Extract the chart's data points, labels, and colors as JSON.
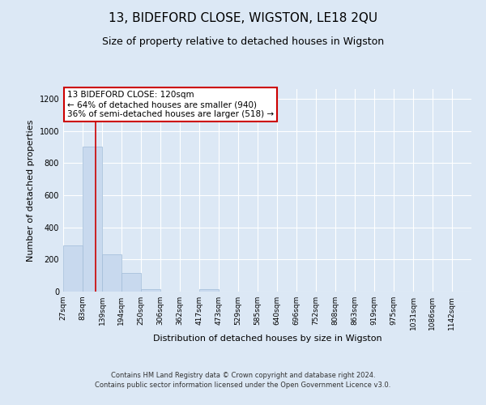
{
  "title": "13, BIDEFORD CLOSE, WIGSTON, LE18 2QU",
  "subtitle": "Size of property relative to detached houses in Wigston",
  "xlabel": "Distribution of detached houses by size in Wigston",
  "ylabel": "Number of detached properties",
  "bin_edges": [
    27,
    83,
    139,
    194,
    250,
    306,
    362,
    417,
    473,
    529,
    585,
    640,
    696,
    752,
    808,
    863,
    919,
    975,
    1031,
    1086,
    1142,
    1198
  ],
  "bar_heights": [
    285,
    900,
    230,
    115,
    15,
    0,
    0,
    15,
    0,
    0,
    0,
    0,
    0,
    0,
    0,
    0,
    0,
    0,
    0,
    0,
    0
  ],
  "bar_color": "#c8d9ee",
  "bar_edgecolor": "#a0bcd8",
  "property_size": 120,
  "annotation_text": "13 BIDEFORD CLOSE: 120sqm\n← 64% of detached houses are smaller (940)\n36% of semi-detached houses are larger (518) →",
  "annotation_box_color": "#ffffff",
  "annotation_border_color": "#cc0000",
  "red_line_color": "#cc0000",
  "ylim": [
    0,
    1260
  ],
  "yticks": [
    0,
    200,
    400,
    600,
    800,
    1000,
    1200
  ],
  "footer_line1": "Contains HM Land Registry data © Crown copyright and database right 2024.",
  "footer_line2": "Contains public sector information licensed under the Open Government Licence v3.0.",
  "bg_color": "#dce8f5",
  "plot_bg_color": "#dce8f5",
  "grid_color": "#ffffff",
  "title_fontsize": 11,
  "subtitle_fontsize": 9,
  "xlabel_fontsize": 8,
  "ylabel_fontsize": 8
}
